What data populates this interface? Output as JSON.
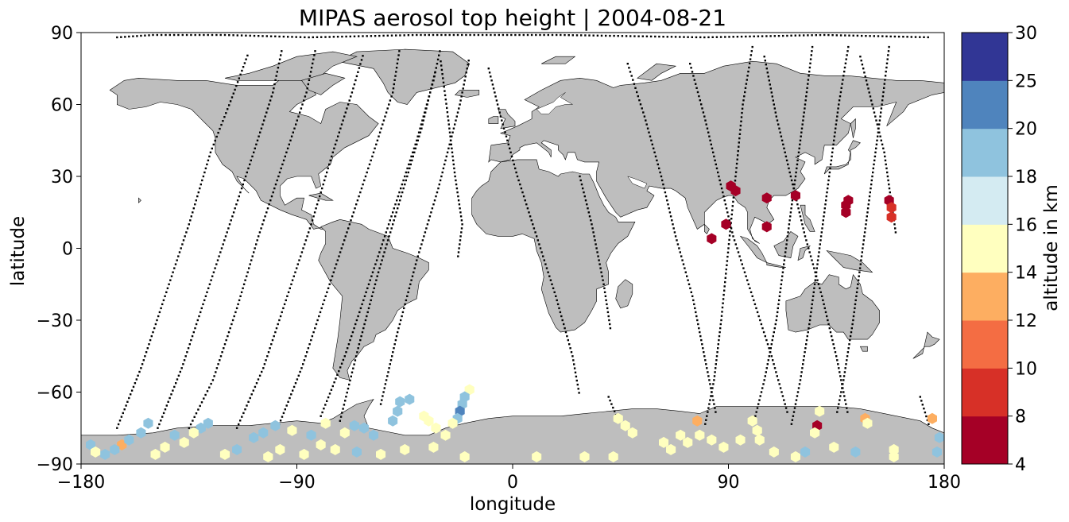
{
  "title": "MIPAS aerosol top height | 2004-08-21",
  "axes": {
    "xlabel": "longitude",
    "ylabel": "latitude",
    "xticks": [
      "−180",
      "−90",
      "0",
      "90",
      "180"
    ],
    "yticks": [
      "90",
      "60",
      "30",
      "0",
      "−30",
      "−60",
      "−90"
    ]
  },
  "colorbar": {
    "label": "altitude in km",
    "ticks": [
      "4",
      "8",
      "10",
      "12",
      "14",
      "16",
      "18",
      "20",
      "25",
      "30"
    ],
    "boundaries": [
      4,
      8,
      10,
      12,
      14,
      16,
      18,
      20,
      25,
      30
    ],
    "colors": [
      "#a50026",
      "#d73027",
      "#f46d43",
      "#fdae61",
      "#ffffbf",
      "#d4ebf2",
      "#8fc3de",
      "#4f84bd",
      "#313695"
    ]
  },
  "land_color": "#bebebe",
  "chart_data": {
    "type": "scatter",
    "title": "MIPAS aerosol top height | 2004-08-21",
    "xlabel": "longitude",
    "ylabel": "latitude",
    "xlim": [
      -180,
      180
    ],
    "ylim": [
      -90,
      90
    ],
    "colorbar_label": "altitude in km",
    "color_levels": [
      4,
      8,
      10,
      12,
      14,
      16,
      18,
      20,
      25,
      30
    ],
    "aerosol_points": [
      {
        "lon": 83,
        "lat": 4,
        "alt": 6
      },
      {
        "lon": 89,
        "lat": 10,
        "alt": 6
      },
      {
        "lon": 91,
        "lat": 26,
        "alt": 6
      },
      {
        "lon": 93,
        "lat": 24,
        "alt": 6
      },
      {
        "lon": 106,
        "lat": 21,
        "alt": 6
      },
      {
        "lon": 106,
        "lat": 9,
        "alt": 6
      },
      {
        "lon": 118,
        "lat": 22,
        "alt": 6
      },
      {
        "lon": 140,
        "lat": 20,
        "alt": 6
      },
      {
        "lon": 139,
        "lat": 18,
        "alt": 6
      },
      {
        "lon": 139,
        "lat": 15,
        "alt": 6
      },
      {
        "lon": 157,
        "lat": 20,
        "alt": 6
      },
      {
        "lon": 158,
        "lat": 17,
        "alt": 9
      },
      {
        "lon": 158,
        "lat": 13,
        "alt": 9
      },
      {
        "lon": 127,
        "lat": -74,
        "alt": 6
      },
      {
        "lon": 77,
        "lat": -72,
        "alt": 13
      },
      {
        "lon": 147,
        "lat": -71,
        "alt": 13
      },
      {
        "lon": 175,
        "lat": -71,
        "alt": 13
      },
      {
        "lon": -163,
        "lat": -82,
        "alt": 13
      },
      {
        "lon": -18,
        "lat": -59,
        "alt": 15
      },
      {
        "lon": -20,
        "lat": -62,
        "alt": 19
      },
      {
        "lon": -21,
        "lat": -65,
        "alt": 19
      },
      {
        "lon": -22,
        "lat": -68,
        "alt": 22
      },
      {
        "lon": -23,
        "lat": -71,
        "alt": 19
      },
      {
        "lon": -43,
        "lat": -63,
        "alt": 19
      },
      {
        "lon": -47,
        "lat": -64,
        "alt": 19
      },
      {
        "lon": -48,
        "lat": -68,
        "alt": 19
      },
      {
        "lon": -50,
        "lat": -72,
        "alt": 19
      },
      {
        "lon": -37,
        "lat": -70,
        "alt": 15
      },
      {
        "lon": -35,
        "lat": -72,
        "alt": 15
      },
      {
        "lon": -32,
        "lat": -75,
        "alt": 15
      },
      {
        "lon": -28,
        "lat": -78,
        "alt": 15
      },
      {
        "lon": -25,
        "lat": -73,
        "alt": 15
      },
      {
        "lon": -58,
        "lat": -78,
        "alt": 19
      },
      {
        "lon": -62,
        "lat": -75,
        "alt": 19
      },
      {
        "lon": -66,
        "lat": -74,
        "alt": 19
      },
      {
        "lon": -70,
        "lat": -77,
        "alt": 15
      },
      {
        "lon": -78,
        "lat": -73,
        "alt": 15
      },
      {
        "lon": -84,
        "lat": -78,
        "alt": 19
      },
      {
        "lon": -92,
        "lat": -76,
        "alt": 15
      },
      {
        "lon": -99,
        "lat": -74,
        "alt": 19
      },
      {
        "lon": -104,
        "lat": -77,
        "alt": 19
      },
      {
        "lon": -108,
        "lat": -79,
        "alt": 19
      },
      {
        "lon": -127,
        "lat": -73,
        "alt": 19
      },
      {
        "lon": -130,
        "lat": -75,
        "alt": 19
      },
      {
        "lon": -133,
        "lat": -77,
        "alt": 15
      },
      {
        "lon": -137,
        "lat": -81,
        "alt": 15
      },
      {
        "lon": -141,
        "lat": -78,
        "alt": 19
      },
      {
        "lon": -152,
        "lat": -73,
        "alt": 19
      },
      {
        "lon": -155,
        "lat": -77,
        "alt": 19
      },
      {
        "lon": -160,
        "lat": -80,
        "alt": 19
      },
      {
        "lon": -166,
        "lat": -84,
        "alt": 19
      },
      {
        "lon": -170,
        "lat": -86,
        "alt": 19
      },
      {
        "lon": -176,
        "lat": -82,
        "alt": 19
      },
      {
        "lon": -174,
        "lat": -85,
        "alt": 15
      },
      {
        "lon": -145,
        "lat": -83,
        "alt": 15
      },
      {
        "lon": -120,
        "lat": -86,
        "alt": 15
      },
      {
        "lon": -115,
        "lat": -84,
        "alt": 19
      },
      {
        "lon": -97,
        "lat": -84,
        "alt": 15
      },
      {
        "lon": -87,
        "lat": -86,
        "alt": 15
      },
      {
        "lon": -80,
        "lat": -82,
        "alt": 15
      },
      {
        "lon": -74,
        "lat": -84,
        "alt": 15
      },
      {
        "lon": -65,
        "lat": -85,
        "alt": 19
      },
      {
        "lon": -55,
        "lat": -86,
        "alt": 15
      },
      {
        "lon": -45,
        "lat": -84,
        "alt": 15
      },
      {
        "lon": -33,
        "lat": -83,
        "alt": 15
      },
      {
        "lon": -20,
        "lat": -87,
        "alt": 15
      },
      {
        "lon": 10,
        "lat": -87,
        "alt": 15
      },
      {
        "lon": 30,
        "lat": -87,
        "alt": 15
      },
      {
        "lon": 42,
        "lat": -87,
        "alt": 15
      },
      {
        "lon": 44,
        "lat": -71,
        "alt": 15
      },
      {
        "lon": 47,
        "lat": -74,
        "alt": 15
      },
      {
        "lon": 50,
        "lat": -77,
        "alt": 15
      },
      {
        "lon": 63,
        "lat": -81,
        "alt": 15
      },
      {
        "lon": 66,
        "lat": -84,
        "alt": 15
      },
      {
        "lon": 70,
        "lat": -78,
        "alt": 15
      },
      {
        "lon": 73,
        "lat": -81,
        "alt": 15
      },
      {
        "lon": 78,
        "lat": -78,
        "alt": 15
      },
      {
        "lon": 83,
        "lat": -80,
        "alt": 15
      },
      {
        "lon": 88,
        "lat": -83,
        "alt": 15
      },
      {
        "lon": 95,
        "lat": -80,
        "alt": 15
      },
      {
        "lon": 100,
        "lat": -72,
        "alt": 15
      },
      {
        "lon": 102,
        "lat": -76,
        "alt": 15
      },
      {
        "lon": 103,
        "lat": -80,
        "alt": 15
      },
      {
        "lon": 126,
        "lat": -77,
        "alt": 15
      },
      {
        "lon": 128,
        "lat": -68,
        "alt": 15
      },
      {
        "lon": 134,
        "lat": -83,
        "alt": 15
      },
      {
        "lon": 143,
        "lat": -85,
        "alt": 19
      },
      {
        "lon": 148,
        "lat": -73,
        "alt": 15
      },
      {
        "lon": 159,
        "lat": -84,
        "alt": 15
      },
      {
        "lon": 177,
        "lat": -85,
        "alt": 19
      },
      {
        "lon": 178,
        "lat": -79,
        "alt": 19
      },
      {
        "lon": 118,
        "lat": -87,
        "alt": 15
      },
      {
        "lon": 122,
        "lat": -85,
        "alt": 19
      },
      {
        "lon": 159,
        "lat": -87,
        "alt": 15
      },
      {
        "lon": 109,
        "lat": -85,
        "alt": 15
      },
      {
        "lon": -149,
        "lat": -86,
        "alt": 15
      },
      {
        "lon": -102,
        "lat": -87,
        "alt": 15
      }
    ]
  }
}
